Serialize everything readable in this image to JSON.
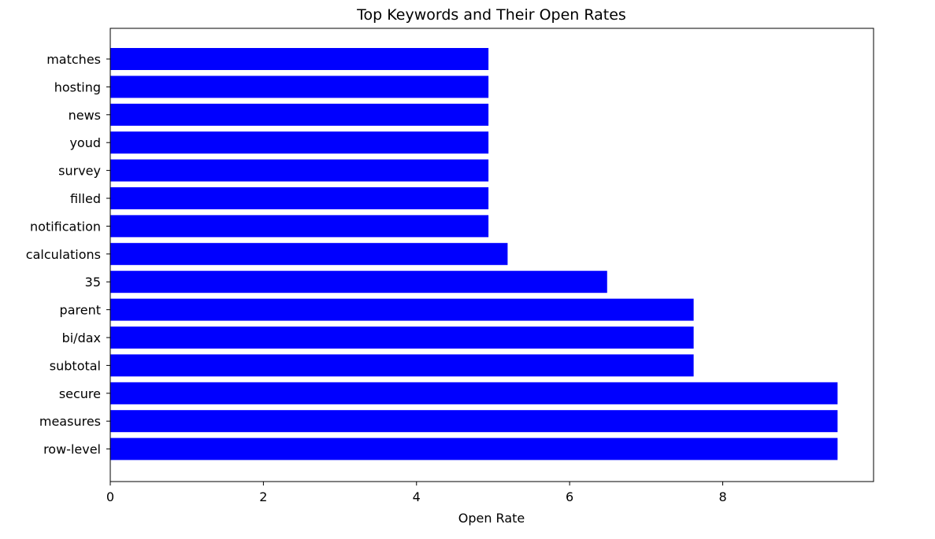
{
  "chart_data": {
    "type": "bar",
    "orientation": "horizontal",
    "title": "Top Keywords and Their Open Rates",
    "xlabel": "Open Rate",
    "ylabel": "",
    "categories": [
      "matches",
      "hosting",
      "news",
      "youd",
      "survey",
      "filled",
      "notification",
      "calculations",
      "35",
      "parent",
      "bi/dax",
      "subtotal",
      "secure",
      "measures",
      "row-level"
    ],
    "values": [
      4.94,
      4.94,
      4.94,
      4.94,
      4.94,
      4.94,
      4.94,
      5.19,
      6.49,
      7.62,
      7.62,
      7.62,
      9.5,
      9.5,
      9.5
    ],
    "xlim": [
      0,
      9.97
    ],
    "xticks": [
      "0",
      "2",
      "4",
      "6",
      "8"
    ],
    "xtick_values": [
      0,
      2,
      4,
      6,
      8
    ],
    "grid": false,
    "bar_color": "#0000ff"
  }
}
